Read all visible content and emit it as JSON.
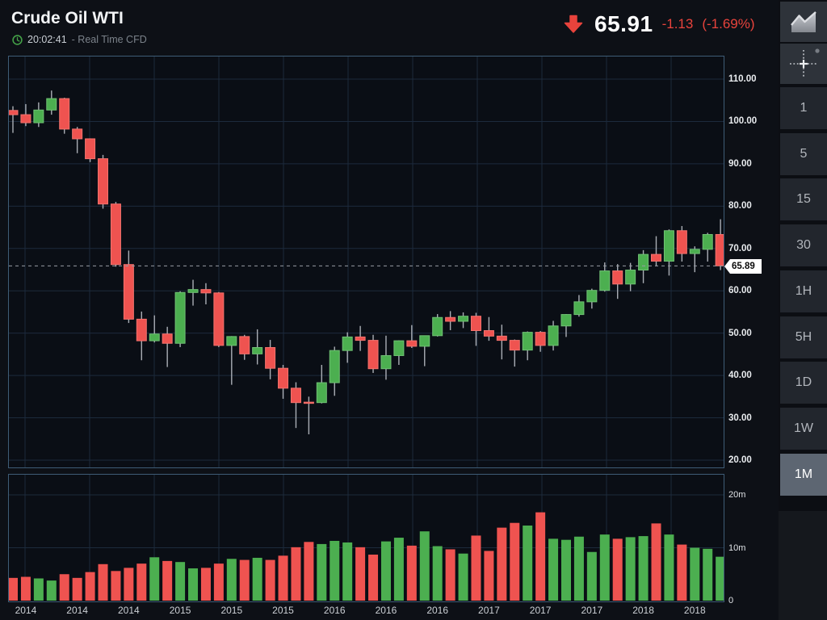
{
  "header": {
    "title": "Crude Oil WTI",
    "time": "20:02:41",
    "feed": "- Real Time CFD",
    "price": "65.91",
    "change": "-1.13",
    "change_pct": "(-1.69%)"
  },
  "price_tag": "65.89",
  "colors": {
    "up": "#4caf50",
    "up_border": "#71c175",
    "down": "#ef5350",
    "down_border": "#f4736e",
    "wick": "#aaaeb5",
    "grid": "#1c2a3c",
    "pane_border": "#3e5c76",
    "accent_red": "#e8433c",
    "price_line": "#979ca4",
    "tag_bg": "#ffffff",
    "clock_green": "#43a047"
  },
  "sidebar": {
    "tools": [
      {
        "name": "chart-style",
        "icon": "area-chart-icon"
      },
      {
        "name": "crosshair",
        "icon": "crosshair-icon"
      }
    ],
    "timeframes": [
      {
        "label": "1"
      },
      {
        "label": "5"
      },
      {
        "label": "15"
      },
      {
        "label": "30"
      },
      {
        "label": "1H"
      },
      {
        "label": "5H"
      },
      {
        "label": "1D"
      },
      {
        "label": "1W"
      },
      {
        "label": "1M",
        "active": true
      }
    ]
  },
  "chart_data": {
    "type": "candlestick+volume",
    "instrument": "Crude Oil WTI",
    "interval": "1M",
    "price_axis": {
      "min": 20,
      "max": 110,
      "tick_step": 10,
      "ticks": [
        "110.00",
        "100.00",
        "90.00",
        "80.00",
        "70.00",
        "60.00",
        "50.00",
        "40.00",
        "30.00",
        "20.00"
      ],
      "current_price": 65.89
    },
    "volume_axis": {
      "ticks": [
        {
          "v": 20,
          "label": "20m"
        },
        {
          "v": 10,
          "label": "10m"
        },
        {
          "v": 0,
          "label": "0"
        }
      ]
    },
    "x_axis": {
      "labels": [
        "2014",
        "2014",
        "2014",
        "2015",
        "2015",
        "2015",
        "2016",
        "2016",
        "2016",
        "2017",
        "2017",
        "2017",
        "2018",
        "2018"
      ],
      "first_candle_index": 1,
      "index_step": 4
    },
    "candles": {
      "columns": [
        "month",
        "open",
        "high",
        "low",
        "close",
        "volume_m"
      ],
      "rows": [
        [
          "2014-03",
          102.6,
          103.6,
          97.3,
          101.6,
          4.3
        ],
        [
          "2014-04",
          101.6,
          104.1,
          98.9,
          99.7,
          4.5
        ],
        [
          "2014-05",
          99.7,
          104.5,
          98.7,
          102.7,
          4.2
        ],
        [
          "2014-06",
          102.7,
          107.3,
          101.6,
          105.4,
          3.8
        ],
        [
          "2014-07",
          105.4,
          105.6,
          97.1,
          98.2,
          5.0
        ],
        [
          "2014-08",
          98.2,
          98.7,
          92.5,
          95.9,
          4.3
        ],
        [
          "2014-09",
          95.9,
          96.0,
          90.4,
          91.2,
          5.4
        ],
        [
          "2014-10",
          91.2,
          92.1,
          79.4,
          80.5,
          6.9
        ],
        [
          "2014-11",
          80.5,
          81.0,
          65.7,
          66.2,
          5.6
        ],
        [
          "2014-12",
          66.2,
          69.5,
          52.4,
          53.3,
          6.2
        ],
        [
          "2015-01",
          53.3,
          55.1,
          43.6,
          48.2,
          7.0
        ],
        [
          "2015-02",
          48.2,
          54.2,
          47.8,
          49.8,
          8.2
        ],
        [
          "2015-03",
          49.8,
          51.5,
          42.0,
          47.6,
          7.5
        ],
        [
          "2015-04",
          47.6,
          59.9,
          46.7,
          59.6,
          7.3
        ],
        [
          "2015-05",
          59.6,
          62.6,
          56.5,
          60.3,
          6.1
        ],
        [
          "2015-06",
          60.3,
          61.8,
          56.8,
          59.5,
          6.2
        ],
        [
          "2015-07",
          59.5,
          59.7,
          46.7,
          47.1,
          7.0
        ],
        [
          "2015-08",
          47.1,
          49.3,
          37.8,
          49.2,
          7.9
        ],
        [
          "2015-09",
          49.2,
          49.6,
          43.7,
          45.1,
          7.7
        ],
        [
          "2015-10",
          45.1,
          50.9,
          42.6,
          46.6,
          8.1
        ],
        [
          "2015-11",
          46.6,
          48.4,
          39.1,
          41.7,
          7.7
        ],
        [
          "2015-12",
          41.7,
          42.5,
          34.5,
          37.0,
          8.5
        ],
        [
          "2016-01",
          37.0,
          38.4,
          27.6,
          33.6,
          10.1
        ],
        [
          "2016-02",
          33.7,
          35.0,
          26.1,
          33.6,
          11.1
        ],
        [
          "2016-03",
          33.6,
          42.5,
          33.4,
          38.3,
          10.7
        ],
        [
          "2016-04",
          38.3,
          46.8,
          35.2,
          45.9,
          11.3
        ],
        [
          "2016-05",
          45.9,
          50.2,
          43.0,
          49.1,
          11.0
        ],
        [
          "2016-06",
          49.1,
          51.7,
          45.8,
          48.3,
          10.1
        ],
        [
          "2016-07",
          48.3,
          49.6,
          40.6,
          41.6,
          8.7
        ],
        [
          "2016-08",
          41.6,
          49.4,
          39.0,
          44.7,
          11.2
        ],
        [
          "2016-09",
          44.7,
          48.3,
          42.5,
          48.2,
          11.9
        ],
        [
          "2016-10",
          48.2,
          51.9,
          46.5,
          46.9,
          10.4
        ],
        [
          "2016-11",
          46.9,
          49.4,
          42.2,
          49.4,
          13.1
        ],
        [
          "2016-12",
          49.4,
          54.5,
          49.2,
          53.7,
          10.3
        ],
        [
          "2017-01",
          53.7,
          55.2,
          50.7,
          52.8,
          9.7
        ],
        [
          "2017-02",
          52.8,
          54.9,
          51.2,
          54.0,
          8.9
        ],
        [
          "2017-03",
          54.0,
          54.8,
          47.0,
          50.6,
          12.3
        ],
        [
          "2017-04",
          50.6,
          53.8,
          48.2,
          49.3,
          9.4
        ],
        [
          "2017-05",
          49.3,
          52.0,
          43.8,
          48.3,
          13.8
        ],
        [
          "2017-06",
          48.3,
          48.5,
          42.1,
          46.0,
          14.7
        ],
        [
          "2017-07",
          46.0,
          50.4,
          43.6,
          50.2,
          14.2
        ],
        [
          "2017-08",
          50.2,
          50.5,
          45.6,
          47.1,
          16.7
        ],
        [
          "2017-09",
          47.1,
          52.9,
          45.9,
          51.7,
          11.7
        ],
        [
          "2017-10",
          51.7,
          54.5,
          49.1,
          54.4,
          11.5
        ],
        [
          "2017-11",
          54.4,
          59.0,
          53.9,
          57.4,
          12.1
        ],
        [
          "2017-12",
          57.4,
          60.5,
          55.8,
          60.1,
          9.2
        ],
        [
          "2018-01",
          60.1,
          66.7,
          59.8,
          64.7,
          12.5
        ],
        [
          "2018-02",
          64.7,
          66.3,
          58.1,
          61.6,
          11.7
        ],
        [
          "2018-03",
          61.6,
          66.6,
          59.9,
          64.9,
          12.0
        ],
        [
          "2018-04",
          64.9,
          69.6,
          61.8,
          68.6,
          12.2
        ],
        [
          "2018-05",
          68.6,
          72.9,
          65.8,
          67.0,
          14.6
        ],
        [
          "2018-06",
          67.0,
          74.5,
          63.6,
          74.2,
          12.5
        ],
        [
          "2018-07",
          74.2,
          75.3,
          66.9,
          68.8,
          10.6
        ],
        [
          "2018-08",
          68.8,
          70.5,
          64.4,
          69.8,
          10.0
        ],
        [
          "2018-09",
          69.8,
          73.7,
          66.9,
          73.3,
          9.8
        ],
        [
          "2018-10",
          73.3,
          76.9,
          64.9,
          65.9,
          8.3
        ]
      ]
    },
    "volume_color_overrides": {
      "2018-10": "up"
    }
  }
}
